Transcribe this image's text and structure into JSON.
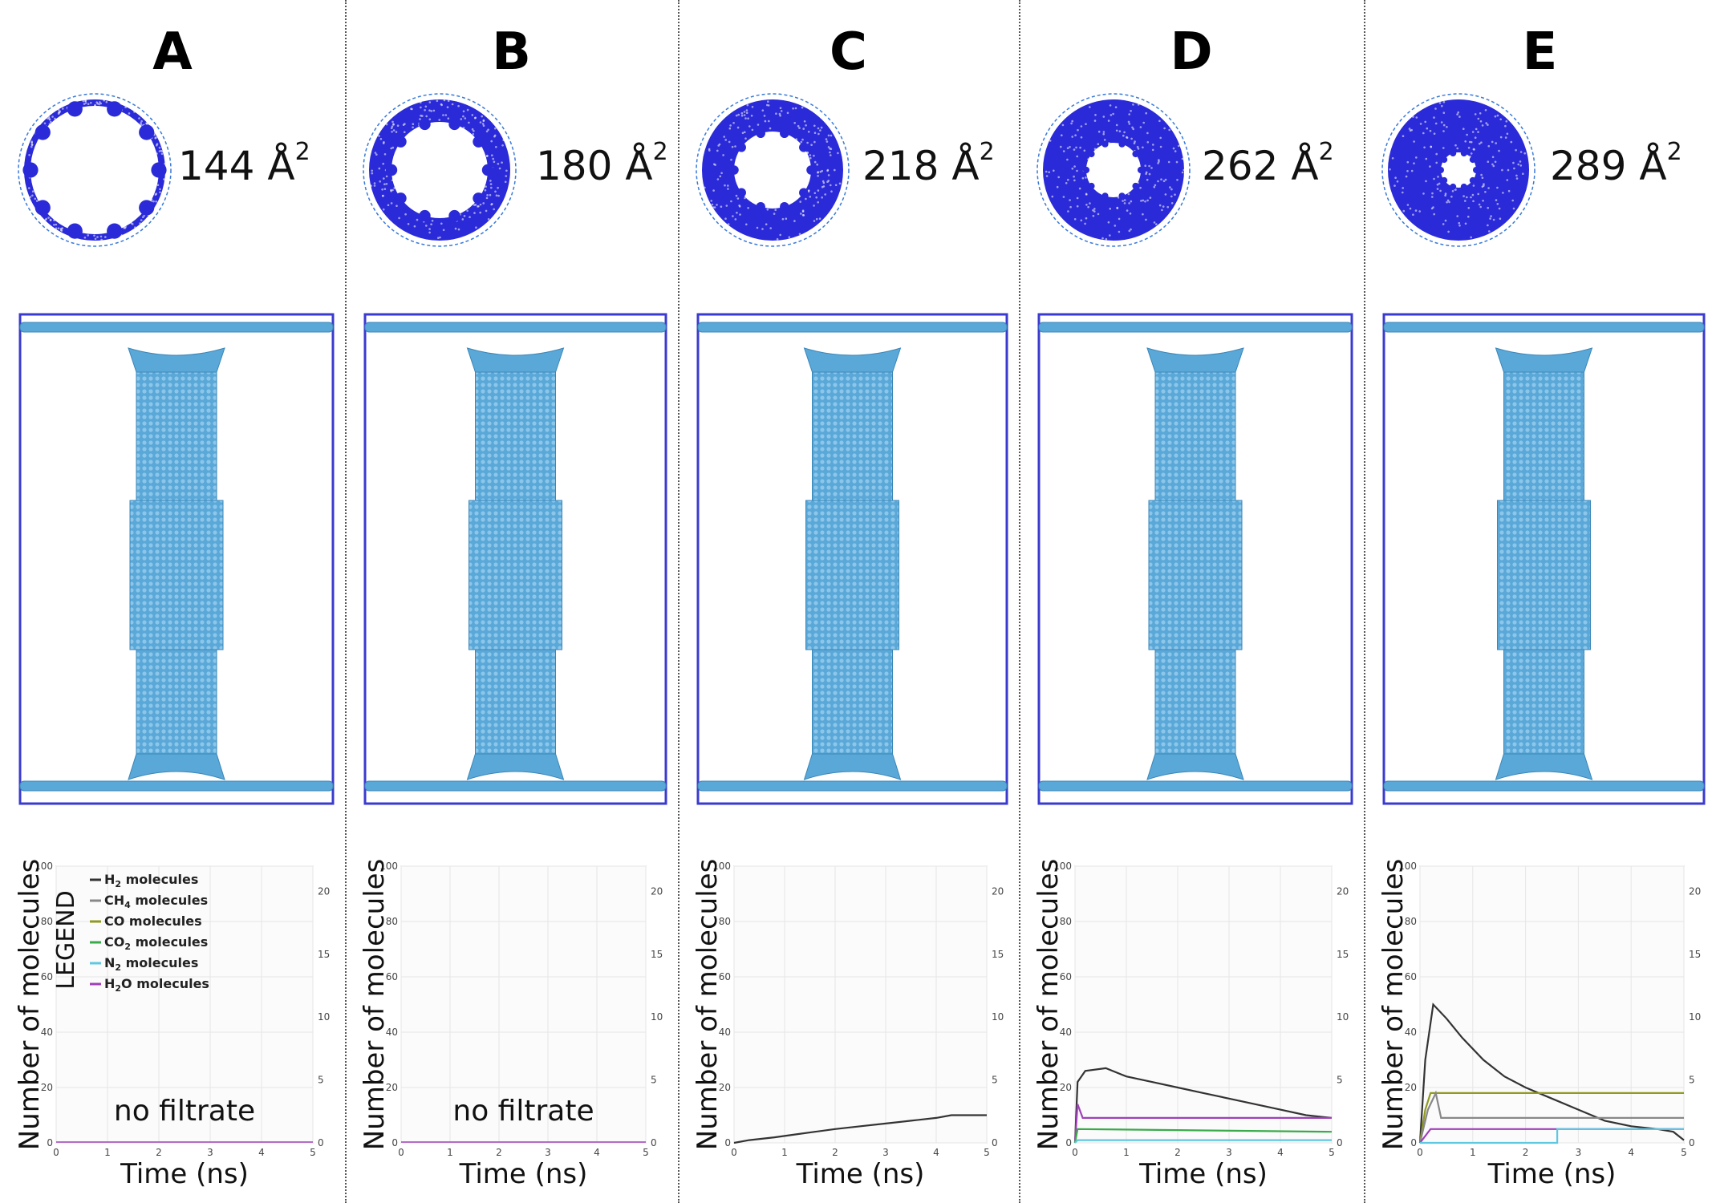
{
  "area_unit": "Å",
  "area_exponent": "2",
  "panels": [
    {
      "label": "A",
      "area": "144",
      "note": "no filtrate"
    },
    {
      "label": "B",
      "area": "180",
      "note": "no filtrate"
    },
    {
      "label": "C",
      "area": "218",
      "note": ""
    },
    {
      "label": "D",
      "area": "262",
      "note": ""
    },
    {
      "label": "E",
      "area": "289",
      "note": ""
    }
  ],
  "legend": {
    "title": "LEGEND",
    "items": [
      {
        "pre": "H",
        "sub": "2",
        "post": " molecules",
        "color": "#333333"
      },
      {
        "pre": "CH",
        "sub": "4",
        "post": " molecules",
        "color": "#888888"
      },
      {
        "pre": "CO",
        "sub": "",
        "post": " molecules",
        "color": "#8f9a1e"
      },
      {
        "pre": "CO",
        "sub": "2",
        "post": " molecules",
        "color": "#3aaa4a"
      },
      {
        "pre": "N",
        "sub": "2",
        "post": " molecules",
        "color": "#5ec8e0"
      },
      {
        "pre": "H",
        "sub": "2",
        "post": "O molecules",
        "color": "#a040b8"
      }
    ]
  },
  "colors": {
    "membrane": "#2a2ad8",
    "tube": "#5aa8d8",
    "tube_dark": "#3a86b8",
    "box": "#3a3ad0"
  },
  "chart_data": [
    {
      "type": "line",
      "panel": "A",
      "xlabel": "Time (ns)",
      "ylabel": "Number of molecules",
      "x_ticks": [
        "0",
        "1",
        "2",
        "3",
        "4",
        "5"
      ],
      "y_ticks": [
        "0",
        "20",
        "40",
        "60",
        "80",
        "100"
      ],
      "y2_ticks": [
        "0",
        "5",
        "10",
        "15",
        "20"
      ],
      "xlim": [
        0,
        5
      ],
      "ylim": [
        0,
        100
      ],
      "y2lim": [
        0,
        22
      ],
      "series": []
    },
    {
      "type": "line",
      "panel": "B",
      "xlabel": "Time (ns)",
      "ylabel": "Number of molecules",
      "x_ticks": [
        "0",
        "1",
        "2",
        "3",
        "4",
        "5"
      ],
      "y_ticks": [
        "0",
        "20",
        "40",
        "60",
        "80",
        "100"
      ],
      "y2_ticks": [
        "0",
        "5",
        "10",
        "15",
        "20"
      ],
      "xlim": [
        0,
        5
      ],
      "ylim": [
        0,
        100
      ],
      "y2lim": [
        0,
        22
      ],
      "series": []
    },
    {
      "type": "line",
      "panel": "C",
      "xlabel": "Time (ns)",
      "ylabel": "Number of molecules",
      "x_ticks": [
        "0",
        "1",
        "2",
        "3",
        "4",
        "5"
      ],
      "y_ticks": [
        "0",
        "20",
        "40",
        "60",
        "80",
        "100"
      ],
      "y2_ticks": [
        "0",
        "5",
        "10",
        "15",
        "20"
      ],
      "xlim": [
        0,
        5
      ],
      "ylim": [
        0,
        100
      ],
      "y2lim": [
        0,
        22
      ],
      "series": [
        {
          "color": "#333333",
          "points": [
            [
              0,
              0
            ],
            [
              0.3,
              1
            ],
            [
              0.8,
              2
            ],
            [
              1.2,
              3
            ],
            [
              1.6,
              4
            ],
            [
              2,
              5
            ],
            [
              2.5,
              6
            ],
            [
              3,
              7
            ],
            [
              3.5,
              8
            ],
            [
              4,
              9
            ],
            [
              4.3,
              10
            ],
            [
              5,
              10
            ]
          ]
        }
      ]
    },
    {
      "type": "line",
      "panel": "D",
      "xlabel": "Time (ns)",
      "ylabel": "Number of molecules",
      "x_ticks": [
        "0",
        "1",
        "2",
        "3",
        "4",
        "5"
      ],
      "y_ticks": [
        "0",
        "20",
        "40",
        "60",
        "80",
        "100"
      ],
      "y2_ticks": [
        "0",
        "5",
        "10",
        "15",
        "20"
      ],
      "xlim": [
        0,
        5
      ],
      "ylim": [
        0,
        100
      ],
      "y2lim": [
        0,
        22
      ],
      "series": [
        {
          "color": "#333333",
          "points": [
            [
              0,
              0
            ],
            [
              0.05,
              22
            ],
            [
              0.2,
              26
            ],
            [
              0.6,
              27
            ],
            [
              1,
              24
            ],
            [
              1.5,
              22
            ],
            [
              2,
              20
            ],
            [
              2.5,
              18
            ],
            [
              3,
              16
            ],
            [
              3.5,
              14
            ],
            [
              4,
              12
            ],
            [
              4.5,
              10
            ],
            [
              5,
              9
            ]
          ]
        },
        {
          "color": "#a040b8",
          "points": [
            [
              0,
              0
            ],
            [
              0.05,
              14
            ],
            [
              0.15,
              9
            ],
            [
              5,
              9
            ]
          ]
        },
        {
          "color": "#3aaa4a",
          "points": [
            [
              0,
              0
            ],
            [
              0.05,
              5
            ],
            [
              5,
              4
            ]
          ]
        },
        {
          "color": "#5ec8e0",
          "points": [
            [
              0,
              0
            ],
            [
              0.05,
              1
            ],
            [
              5,
              1
            ]
          ]
        }
      ]
    },
    {
      "type": "line",
      "panel": "E",
      "xlabel": "Time (ns)",
      "ylabel": "Number of molecules",
      "x_ticks": [
        "0",
        "1",
        "2",
        "3",
        "4",
        "5"
      ],
      "y_ticks": [
        "0",
        "20",
        "40",
        "60",
        "80",
        "100"
      ],
      "y2_ticks": [
        "0",
        "5",
        "10",
        "15",
        "20"
      ],
      "xlim": [
        0,
        5
      ],
      "ylim": [
        0,
        100
      ],
      "y2lim": [
        0,
        22
      ],
      "series": [
        {
          "color": "#333333",
          "points": [
            [
              0,
              0
            ],
            [
              0.1,
              30
            ],
            [
              0.25,
              50
            ],
            [
              0.5,
              45
            ],
            [
              0.8,
              38
            ],
            [
              1.2,
              30
            ],
            [
              1.6,
              24
            ],
            [
              2,
              20
            ],
            [
              2.5,
              16
            ],
            [
              3,
              12
            ],
            [
              3.5,
              8
            ],
            [
              4,
              6
            ],
            [
              4.5,
              5
            ],
            [
              4.8,
              4
            ],
            [
              5,
              1
            ]
          ]
        },
        {
          "color": "#8f9a1e",
          "points": [
            [
              0,
              0
            ],
            [
              0.1,
              12
            ],
            [
              0.2,
              18
            ],
            [
              5,
              18
            ]
          ]
        },
        {
          "color": "#888888",
          "points": [
            [
              0,
              0
            ],
            [
              0.15,
              12
            ],
            [
              0.3,
              18
            ],
            [
              0.4,
              9
            ],
            [
              5,
              9
            ]
          ]
        },
        {
          "color": "#a040b8",
          "points": [
            [
              0,
              0
            ],
            [
              0.2,
              5
            ],
            [
              5,
              5
            ]
          ]
        },
        {
          "color": "#5ec8e0",
          "points": [
            [
              0,
              0
            ],
            [
              2.6,
              0
            ],
            [
              2.6,
              5
            ],
            [
              5,
              5
            ]
          ]
        }
      ]
    }
  ]
}
